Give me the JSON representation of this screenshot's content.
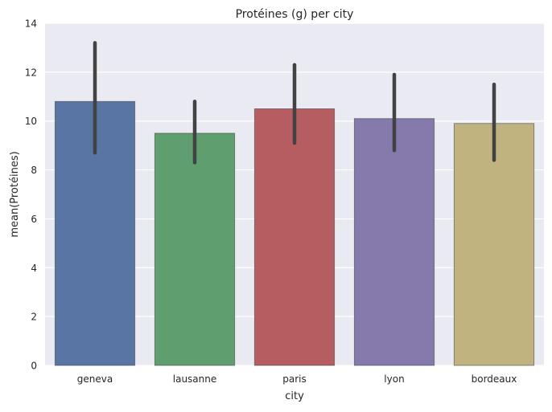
{
  "chart_data": {
    "type": "bar",
    "title": "Protéines (g) per city",
    "xlabel": "city",
    "ylabel": "mean(Protéines)",
    "categories": [
      "geneva",
      "lausanne",
      "paris",
      "lyon",
      "bordeaux"
    ],
    "values": [
      10.8,
      9.5,
      10.5,
      10.1,
      9.9
    ],
    "error_low": [
      8.7,
      8.3,
      9.1,
      8.8,
      8.4
    ],
    "error_high": [
      13.2,
      10.8,
      12.3,
      11.9,
      11.5
    ],
    "ylim": [
      0,
      14
    ],
    "yticks": [
      "0",
      "2",
      "4",
      "6",
      "8",
      "10",
      "12",
      "14"
    ],
    "grid": true,
    "colors": [
      "#5875a4",
      "#5f9e6e",
      "#b55d60",
      "#857aab",
      "#c1b37f"
    ],
    "background": "#eaeaf2",
    "error_color": "#424242"
  }
}
